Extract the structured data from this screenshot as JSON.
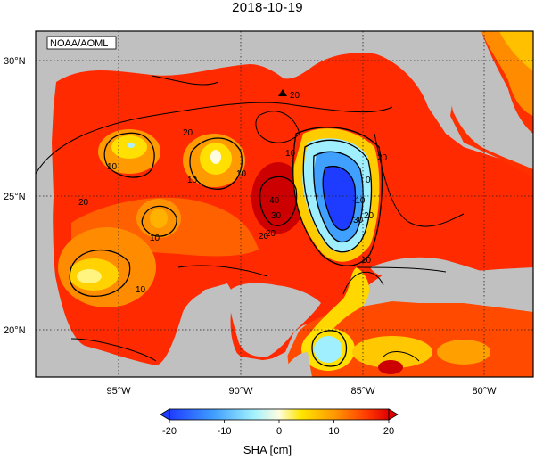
{
  "title": "2018-10-19",
  "credit": "NOAA/AOML",
  "lat_labels": [
    "30°N",
    "25°N",
    "20°N"
  ],
  "lon_labels": [
    "95°W",
    "90°W",
    "85°W",
    "80°W"
  ],
  "contour_labels": [
    "20",
    "10",
    "10",
    "20",
    "10",
    "20",
    "10",
    "40",
    "30",
    "20",
    "10",
    "0",
    "-10",
    "20",
    "30",
    "20",
    "10",
    "10",
    "20"
  ],
  "colorbar": {
    "label": "SHA [cm]",
    "ticks": [
      "-20",
      "-10",
      "0",
      "10",
      "20"
    ],
    "range": [
      -20,
      20
    ],
    "colors": [
      "#1e3cff",
      "#2f6cff",
      "#3f9dff",
      "#55c8ff",
      "#7de8ff",
      "#b0f5ff",
      "#e6fff2",
      "#fff46a",
      "#ffd400",
      "#ffb400",
      "#ff8c00",
      "#ff6400",
      "#ff3c00",
      "#ff1a00",
      "#e60000",
      "#cc0000"
    ]
  },
  "colors": {
    "land": "#c0c0c0",
    "ocean_high": "#ff2000",
    "eddy_core": "#1e3cff"
  },
  "marker": "triangle"
}
